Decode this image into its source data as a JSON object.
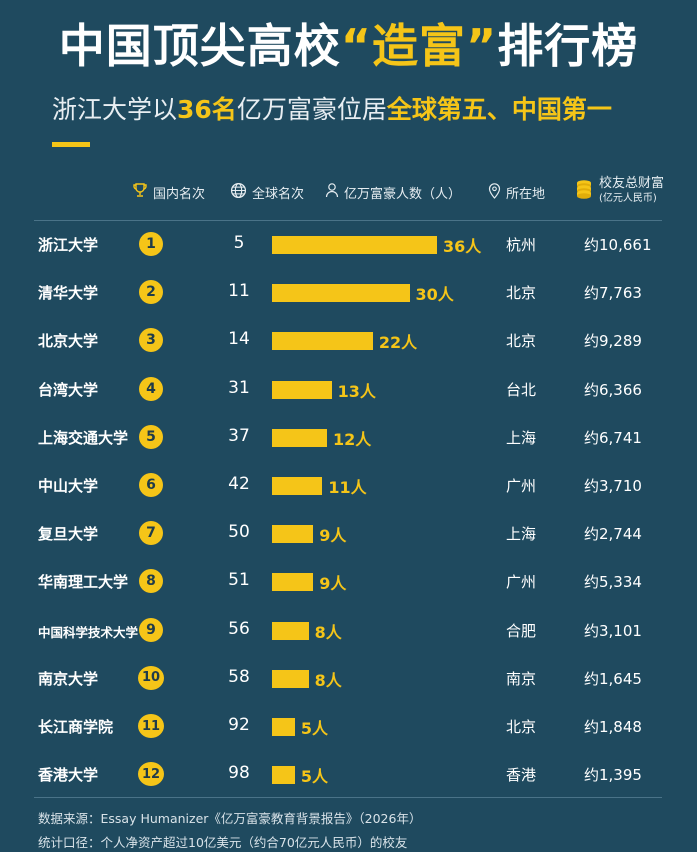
{
  "title": {
    "part1": "中国顶尖高校",
    "highlight": "“造富”",
    "part2": "排行榜"
  },
  "subtitle": {
    "part1": "浙江大学以",
    "highlight1": "36名",
    "part2": "亿万富豪位居",
    "highlight2": "全球第五、中国第一"
  },
  "headers": {
    "domestic_rank": "国内名次",
    "global_rank": "全球名次",
    "billionaires": "亿万富豪人数（人）",
    "location": "所在地",
    "wealth_line1": "校友总财富",
    "wealth_line2": "(亿元人民币)"
  },
  "colors": {
    "accent": "#f5c518",
    "background": "#1f4a5f",
    "text": "#ffffff"
  },
  "chart_data": {
    "type": "bar",
    "categories": [
      "浙江大学",
      "清华大学",
      "北京大学",
      "台湾大学",
      "上海交通大学",
      "中山大学",
      "复旦大学",
      "华南理工大学",
      "中国科学技术大学",
      "南京大学",
      "长江商学院",
      "香港大学"
    ],
    "values": [
      36,
      30,
      22,
      13,
      12,
      11,
      9,
      9,
      8,
      8,
      5,
      5
    ],
    "value_unit": "人"
  },
  "rows": [
    {
      "name": "浙江大学",
      "rank": "1",
      "global": "5",
      "count": "36人",
      "location": "杭州",
      "wealth": "约10,661"
    },
    {
      "name": "清华大学",
      "rank": "2",
      "global": "11",
      "count": "30人",
      "location": "北京",
      "wealth": "约7,763"
    },
    {
      "name": "北京大学",
      "rank": "3",
      "global": "14",
      "count": "22人",
      "location": "北京",
      "wealth": "约9,289"
    },
    {
      "name": "台湾大学",
      "rank": "4",
      "global": "31",
      "count": "13人",
      "location": "台北",
      "wealth": "约6,366"
    },
    {
      "name": "上海交通大学",
      "rank": "5",
      "global": "37",
      "count": "12人",
      "location": "上海",
      "wealth": "约6,741"
    },
    {
      "name": "中山大学",
      "rank": "6",
      "global": "42",
      "count": "11人",
      "location": "广州",
      "wealth": "约3,710"
    },
    {
      "name": "复旦大学",
      "rank": "7",
      "global": "50",
      "count": "9人",
      "location": "上海",
      "wealth": "约2,744"
    },
    {
      "name": "华南理工大学",
      "rank": "8",
      "global": "51",
      "count": "9人",
      "location": "广州",
      "wealth": "约5,334"
    },
    {
      "name": "中国科学技术大学",
      "rank": "9",
      "global": "56",
      "count": "8人",
      "location": "合肥",
      "wealth": "约3,101"
    },
    {
      "name": "南京大学",
      "rank": "10",
      "global": "58",
      "count": "8人",
      "location": "南京",
      "wealth": "约1,645"
    },
    {
      "name": "长江商学院",
      "rank": "11",
      "global": "92",
      "count": "5人",
      "location": "北京",
      "wealth": "约1,848"
    },
    {
      "name": "香港大学",
      "rank": "12",
      "global": "98",
      "count": "5人",
      "location": "香港",
      "wealth": "约1,395"
    }
  ],
  "footer": {
    "source": "数据来源：Essay Humanizer《亿万富豪教育背景报告》（2026年）",
    "scope": "统计口径：个人净资产超过10亿美元（约合70亿元人民币）的校友"
  }
}
